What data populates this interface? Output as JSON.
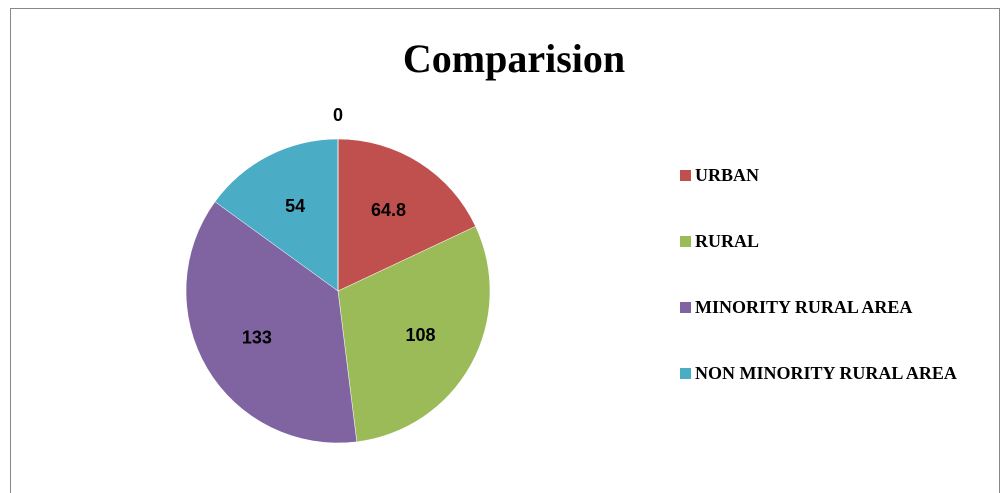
{
  "chart_data": {
    "type": "pie",
    "title": "Comparision",
    "categories": [
      "URBAN",
      "RURAL",
      "MINORITY RURAL AREA",
      "NON MINORITY RURAL AREA",
      null
    ],
    "values": [
      64.8,
      108,
      133,
      54,
      0
    ],
    "colors": [
      "#c0504d",
      "#9bbb59",
      "#8064a2",
      "#4bacc6",
      "#f79646"
    ],
    "legend": "right"
  }
}
